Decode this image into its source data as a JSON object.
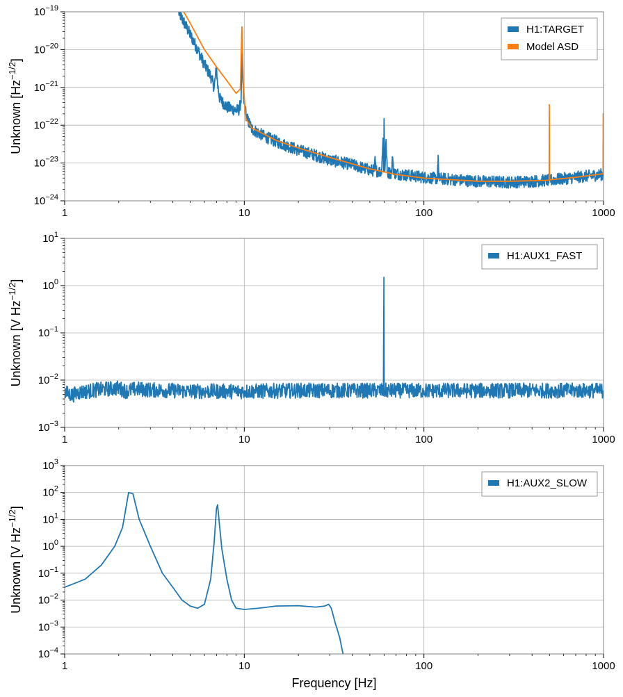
{
  "chart_data": [
    {
      "type": "line",
      "xscale": "log",
      "yscale": "log",
      "xlim": [
        1,
        1000
      ],
      "ylim": [
        1e-24,
        1e-19
      ],
      "xticks": [
        {
          "value": 1,
          "label": "1"
        },
        {
          "value": 10,
          "label": "10"
        },
        {
          "value": 100,
          "label": "100"
        },
        {
          "value": 1000,
          "label": "1000"
        }
      ],
      "yticks": [
        {
          "value": 1e-24,
          "base": "10",
          "exp": "−24"
        },
        {
          "value": 1e-23,
          "base": "10",
          "exp": "−23"
        },
        {
          "value": 1e-22,
          "base": "10",
          "exp": "−22"
        },
        {
          "value": 1e-21,
          "base": "10",
          "exp": "−21"
        },
        {
          "value": 1e-20,
          "base": "10",
          "exp": "−20"
        },
        {
          "value": 1e-19,
          "base": "10",
          "exp": "−19"
        }
      ],
      "ylabel": {
        "main": "Unknown [Hz",
        "sup": "−1/2",
        "tail": "]"
      },
      "xlabel": "",
      "grid": true,
      "legend_position": "top-right",
      "series": [
        {
          "name": "H1:TARGET",
          "color": "#1f77b4",
          "noise": true,
          "points": [
            [
              4.3,
              1e-19
            ],
            [
              5,
              2.5e-20
            ],
            [
              5.5,
              1e-20
            ],
            [
              6,
              4e-21
            ],
            [
              6.5,
              2e-21
            ],
            [
              6.8,
              1e-21
            ],
            [
              7,
              3.3e-21
            ],
            [
              7.1,
              1.2e-21
            ],
            [
              7.3,
              5e-22
            ],
            [
              8,
              3e-22
            ],
            [
              9,
              2.5e-22
            ],
            [
              9.4,
              2.6e-22
            ],
            [
              9.6,
              5e-22
            ],
            [
              9.75,
              8e-21
            ],
            [
              9.9,
              5e-22
            ],
            [
              10.3,
              1.6e-22
            ],
            [
              11,
              8e-23
            ],
            [
              13,
              5e-23
            ],
            [
              16,
              3.3e-23
            ],
            [
              20,
              2.2e-23
            ],
            [
              25,
              1.6e-23
            ],
            [
              30,
              1.2e-23
            ],
            [
              40,
              9e-24
            ],
            [
              50,
              6.5e-24
            ],
            [
              53,
              6.3e-24
            ],
            [
              53.5,
              1.3e-23
            ],
            [
              54,
              6.3e-24
            ],
            [
              58,
              5.8e-24
            ],
            [
              59.2,
              4e-23
            ],
            [
              59.8,
              5.8e-24
            ],
            [
              60,
              1.5e-22
            ],
            [
              60.5,
              5.8e-24
            ],
            [
              61.5,
              4e-23
            ],
            [
              62.5,
              5.8e-24
            ],
            [
              66,
              5.4e-24
            ],
            [
              67,
              1.4e-23
            ],
            [
              68,
              5.4e-24
            ],
            [
              80,
              4.8e-24
            ],
            [
              100,
              4.2e-24
            ],
            [
              119,
              3.9e-24
            ],
            [
              120,
              1.6e-23
            ],
            [
              121,
              3.9e-24
            ],
            [
              150,
              3.6e-24
            ],
            [
              200,
              3.3e-24
            ],
            [
              300,
              3.1e-24
            ],
            [
              400,
              3.3e-24
            ],
            [
              500,
              3.5e-24
            ],
            [
              700,
              4.2e-24
            ],
            [
              995,
              5e-24
            ],
            [
              997,
              3.5e-23
            ],
            [
              999,
              5.5e-24
            ]
          ]
        },
        {
          "name": "Model ASD",
          "color": "#ff7f0e",
          "noise": false,
          "points": [
            [
              4.6,
              1e-19
            ],
            [
              5,
              5e-20
            ],
            [
              6,
              1e-20
            ],
            [
              7,
              3.5e-21
            ],
            [
              8,
              1.5e-21
            ],
            [
              9,
              7e-22
            ],
            [
              9.5,
              9e-22
            ],
            [
              9.7,
              4e-20
            ],
            [
              9.9,
              1e-21
            ],
            [
              10.2,
              1.5e-22
            ],
            [
              11,
              8.5e-23
            ],
            [
              15,
              4e-23
            ],
            [
              20,
              2.5e-23
            ],
            [
              30,
              1.4e-23
            ],
            [
              50,
              7e-24
            ],
            [
              70,
              5e-24
            ],
            [
              100,
              4e-24
            ],
            [
              200,
              3.3e-24
            ],
            [
              300,
              3.3e-24
            ],
            [
              400,
              3.4e-24
            ],
            [
              498,
              3.5e-24
            ],
            [
              499,
              3.5e-22
            ],
            [
              501,
              3.6e-24
            ],
            [
              700,
              4.2e-24
            ],
            [
              995,
              5.2e-24
            ],
            [
              996,
              2e-22
            ],
            [
              1000,
              5.5e-24
            ]
          ]
        }
      ]
    },
    {
      "type": "line",
      "xscale": "log",
      "yscale": "log",
      "xlim": [
        1,
        1000
      ],
      "ylim": [
        0.001,
        10
      ],
      "xticks": [
        {
          "value": 1,
          "label": "1"
        },
        {
          "value": 10,
          "label": "10"
        },
        {
          "value": 100,
          "label": "100"
        },
        {
          "value": 1000,
          "label": "1000"
        }
      ],
      "yticks": [
        {
          "value": 0.001,
          "base": "10",
          "exp": "−3"
        },
        {
          "value": 0.01,
          "base": "10",
          "exp": "−2"
        },
        {
          "value": 0.1,
          "base": "10",
          "exp": "−1"
        },
        {
          "value": 1,
          "base": "10",
          "exp": "0"
        },
        {
          "value": 10,
          "base": "10",
          "exp": "1"
        }
      ],
      "ylabel": {
        "main": "Unknown [V Hz",
        "sup": "−1/2",
        "tail": "]"
      },
      "xlabel": "",
      "grid": true,
      "legend_position": "top-right",
      "series": [
        {
          "name": "H1:AUX1_FAST",
          "color": "#1f77b4",
          "noise": true,
          "points": [
            [
              1,
              0.0055
            ],
            [
              1.1,
              0.0048
            ],
            [
              1.2,
              0.0055
            ],
            [
              1.5,
              0.0062
            ],
            [
              2,
              0.0068
            ],
            [
              2.2,
              0.0058
            ],
            [
              2.5,
              0.0065
            ],
            [
              3,
              0.0062
            ],
            [
              4,
              0.006
            ],
            [
              5,
              0.0058
            ],
            [
              10,
              0.0058
            ],
            [
              20,
              0.006
            ],
            [
              59.5,
              0.006
            ],
            [
              59.9,
              1.5
            ],
            [
              60.1,
              0.006
            ],
            [
              100,
              0.006
            ],
            [
              1000,
              0.006
            ]
          ]
        }
      ]
    },
    {
      "type": "line",
      "xscale": "log",
      "yscale": "log",
      "xlim": [
        1,
        1000
      ],
      "ylim": [
        0.0001,
        1000
      ],
      "xticks": [
        {
          "value": 1,
          "label": "1"
        },
        {
          "value": 10,
          "label": "10"
        },
        {
          "value": 100,
          "label": "100"
        },
        {
          "value": 1000,
          "label": "1000"
        }
      ],
      "yticks": [
        {
          "value": 0.0001,
          "base": "10",
          "exp": "−4"
        },
        {
          "value": 0.001,
          "base": "10",
          "exp": "−3"
        },
        {
          "value": 0.01,
          "base": "10",
          "exp": "−2"
        },
        {
          "value": 0.1,
          "base": "10",
          "exp": "−1"
        },
        {
          "value": 1,
          "base": "10",
          "exp": "0"
        },
        {
          "value": 10,
          "base": "10",
          "exp": "1"
        },
        {
          "value": 100,
          "base": "10",
          "exp": "2"
        },
        {
          "value": 1000,
          "base": "10",
          "exp": "3"
        }
      ],
      "ylabel": {
        "main": "Unknown [V Hz",
        "sup": "−1/2",
        "tail": "]"
      },
      "xlabel": "Frequency [Hz]",
      "grid": true,
      "legend_position": "top-right",
      "series": [
        {
          "name": "H1:AUX2_SLOW",
          "color": "#1f77b4",
          "noise": false,
          "points": [
            [
              1,
              0.03
            ],
            [
              1.3,
              0.06
            ],
            [
              1.6,
              0.2
            ],
            [
              1.9,
              1
            ],
            [
              2.1,
              5
            ],
            [
              2.2,
              30
            ],
            [
              2.27,
              100
            ],
            [
              2.4,
              90
            ],
            [
              2.6,
              10
            ],
            [
              3,
              1
            ],
            [
              3.5,
              0.1
            ],
            [
              4,
              0.03
            ],
            [
              4.5,
              0.01
            ],
            [
              5,
              0.006
            ],
            [
              5.5,
              0.005
            ],
            [
              6,
              0.007
            ],
            [
              6.5,
              0.06
            ],
            [
              6.8,
              1.5
            ],
            [
              7,
              25
            ],
            [
              7.1,
              35
            ],
            [
              7.25,
              8
            ],
            [
              7.5,
              0.8
            ],
            [
              8,
              0.06
            ],
            [
              8.5,
              0.01
            ],
            [
              9,
              0.005
            ],
            [
              10,
              0.0045
            ],
            [
              12,
              0.005
            ],
            [
              15,
              0.006
            ],
            [
              20,
              0.0062
            ],
            [
              25,
              0.0055
            ],
            [
              28,
              0.006
            ],
            [
              29.5,
              0.007
            ],
            [
              30.5,
              0.005
            ],
            [
              32,
              0.0015
            ],
            [
              34,
              0.0004
            ],
            [
              35,
              0.00015
            ],
            [
              35.5,
              0.0001
            ]
          ]
        }
      ]
    }
  ]
}
